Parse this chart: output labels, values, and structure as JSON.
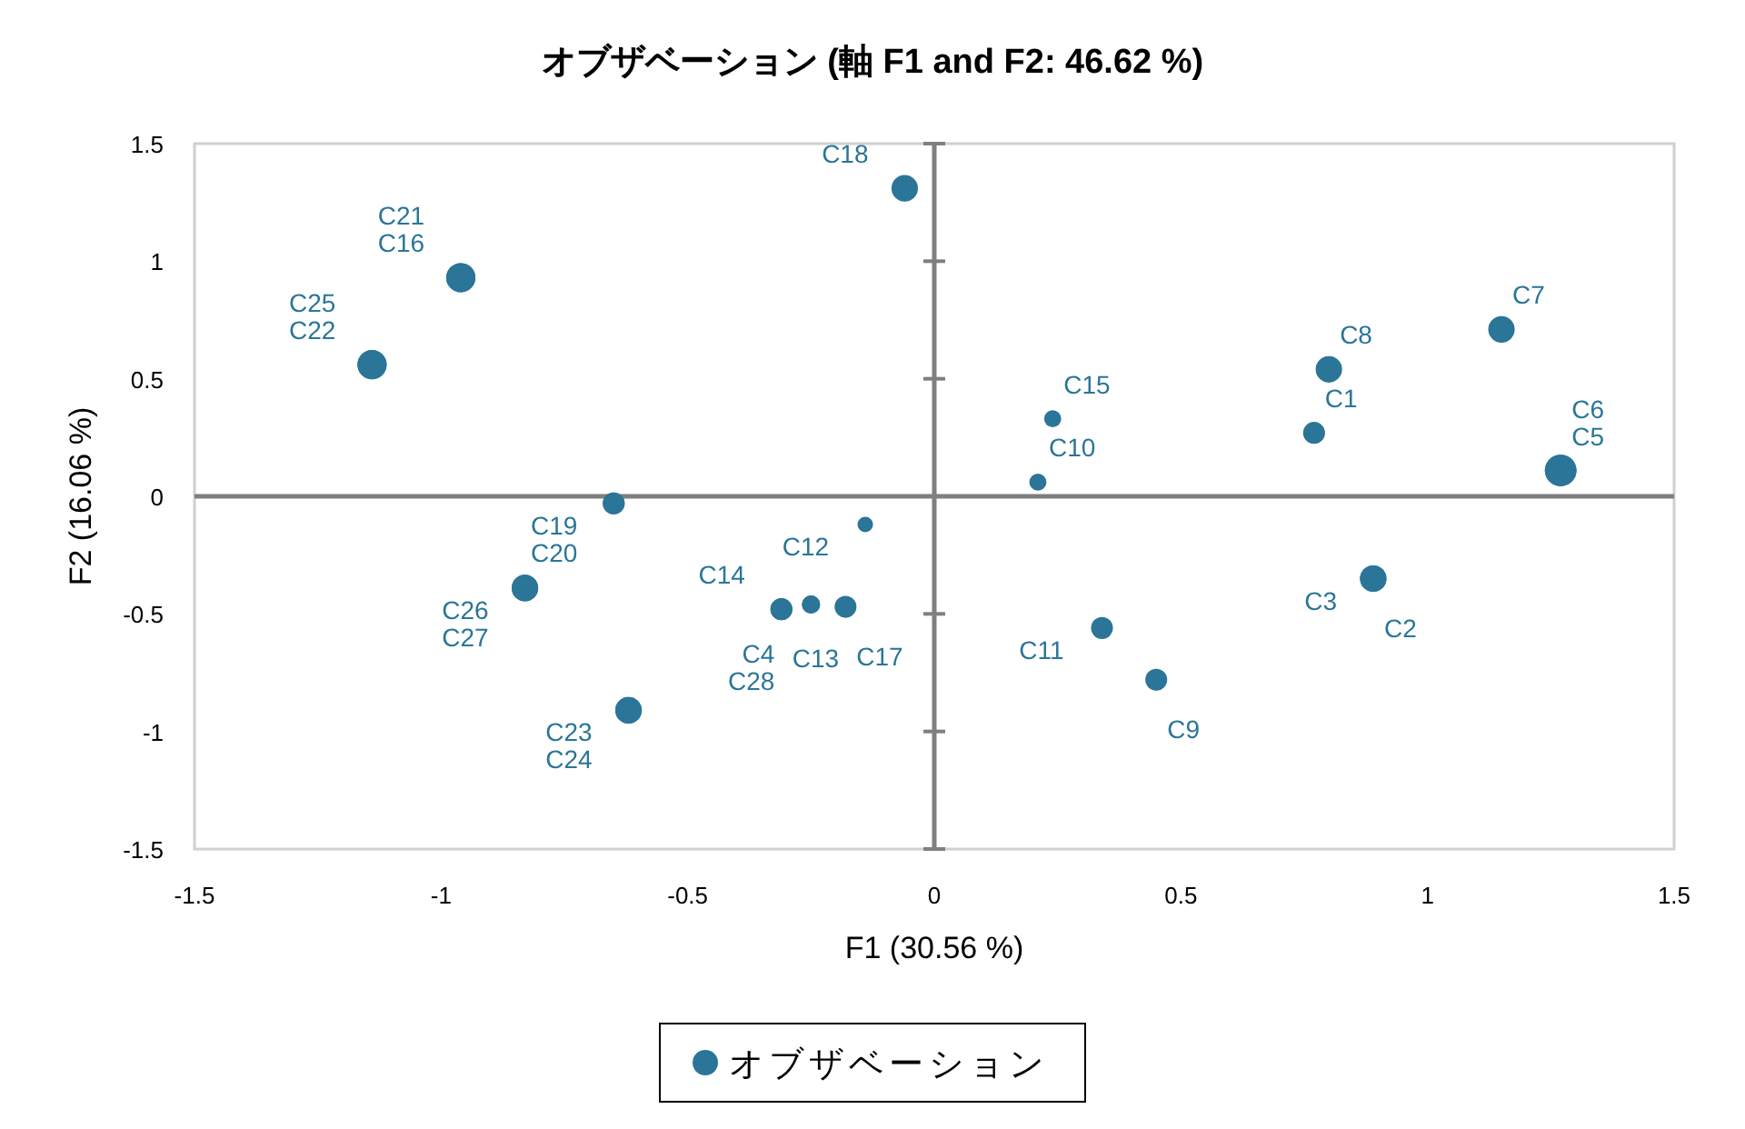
{
  "chart_data": {
    "type": "bubble",
    "title": "オブザベーション (軸 F1 and F2: 46.62 %)",
    "xlabel": "F1 (30.56 %)",
    "ylabel": "F2 (16.06 %)",
    "xlim": [
      -1.5,
      1.5
    ],
    "ylim": [
      -1.5,
      1.5
    ],
    "xticks": [
      -1.5,
      -1,
      -0.5,
      0,
      0.5,
      1,
      1.5
    ],
    "yticks": [
      -1.5,
      -1,
      -0.5,
      0,
      0.5,
      1,
      1.5
    ],
    "legend": "bottom",
    "series": [
      {
        "name": "オブザベーション",
        "color": "#2a7598",
        "x": [
          0.77,
          0.89,
          0.89,
          -0.25,
          1.27,
          1.27,
          1.15,
          0.8,
          0.45,
          0.21,
          0.34,
          -0.14,
          -0.31,
          -0.31,
          0.24,
          -0.96,
          -0.18,
          -0.06,
          -0.65,
          -0.65,
          -0.96,
          -1.14,
          -0.62,
          -0.62,
          -1.14,
          -0.83,
          -0.83,
          -0.25
        ],
        "values": [
          0.27,
          -0.35,
          -0.35,
          -0.46,
          0.11,
          0.11,
          0.71,
          0.54,
          -0.78,
          0.06,
          -0.56,
          -0.12,
          -0.48,
          -0.48,
          0.33,
          0.93,
          -0.47,
          1.31,
          -0.03,
          -0.03,
          0.93,
          0.56,
          -0.91,
          -0.91,
          0.56,
          -0.39,
          -0.39,
          -0.46
        ],
        "sizes": [
          0.48,
          0.7,
          0.7,
          0.33,
          1,
          1,
          0.7,
          0.7,
          0.48,
          0.29,
          0.48,
          0.24,
          0.48,
          0.48,
          0.29,
          0.85,
          0.48,
          0.7,
          0.48,
          0.48,
          0.85,
          0.85,
          0.7,
          0.7,
          0.85,
          0.7,
          0.7,
          0.33
        ]
      }
    ],
    "annotations": [
      {
        "text": "C1",
        "x": 0.77,
        "y": 0.27
      },
      {
        "text": "C2",
        "x": 0.89,
        "y": -0.35
      },
      {
        "text": "C3",
        "x": 0.89,
        "y": -0.35
      },
      {
        "text": "C4",
        "x": -0.25,
        "y": -0.46
      },
      {
        "text": "C5",
        "x": 1.27,
        "y": 0.11
      },
      {
        "text": "C6",
        "x": 1.27,
        "y": 0.11
      },
      {
        "text": "C7",
        "x": 1.15,
        "y": 0.71
      },
      {
        "text": "C8",
        "x": 0.8,
        "y": 0.54
      },
      {
        "text": "C9",
        "x": 0.45,
        "y": -0.78
      },
      {
        "text": "C10",
        "x": 0.21,
        "y": 0.06
      },
      {
        "text": "C11",
        "x": 0.34,
        "y": -0.56
      },
      {
        "text": "C12",
        "x": -0.14,
        "y": -0.12
      },
      {
        "text": "C13",
        "x": -0.31,
        "y": -0.48
      },
      {
        "text": "C14",
        "x": -0.31,
        "y": -0.48
      },
      {
        "text": "C15",
        "x": 0.24,
        "y": 0.33
      },
      {
        "text": "C16",
        "x": -0.96,
        "y": 0.93
      },
      {
        "text": "C17",
        "x": -0.18,
        "y": -0.47
      },
      {
        "text": "C18",
        "x": -0.06,
        "y": 1.31
      },
      {
        "text": "C19",
        "x": -0.65,
        "y": -0.03
      },
      {
        "text": "C20",
        "x": -0.65,
        "y": -0.03
      },
      {
        "text": "C21",
        "x": -0.96,
        "y": 0.93
      },
      {
        "text": "C22",
        "x": -1.14,
        "y": 0.56
      },
      {
        "text": "C23",
        "x": -0.62,
        "y": -0.91
      },
      {
        "text": "C24",
        "x": -0.62,
        "y": -0.91
      },
      {
        "text": "C25",
        "x": -1.14,
        "y": 0.56
      },
      {
        "text": "C26",
        "x": -0.83,
        "y": -0.39
      },
      {
        "text": "C27",
        "x": -0.83,
        "y": -0.39
      },
      {
        "text": "C28",
        "x": -0.25,
        "y": -0.46
      }
    ]
  }
}
